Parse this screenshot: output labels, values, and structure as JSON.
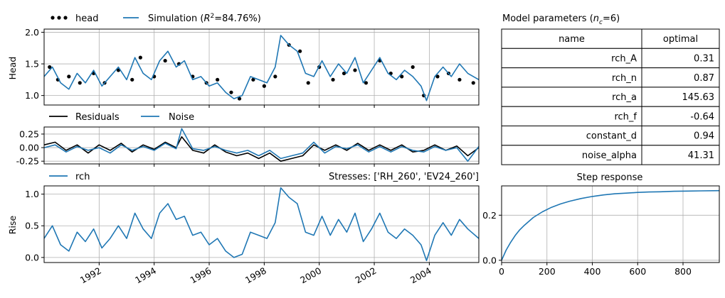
{
  "colors": {
    "series": "#1f77b4",
    "observed": "#000000",
    "residuals": "#000000",
    "grid": "#b0b0b0"
  },
  "top_panel": {
    "legend": {
      "head": "head",
      "simulation_prefix": "Simulation (",
      "r2_symbol": "R",
      "r2_exp": "2",
      "r2_value": "=84.76%)"
    }
  },
  "mid_panel": {
    "legend": {
      "residuals": "Residuals",
      "noise": "Noise"
    }
  },
  "bottom_panel": {
    "legend": {
      "rch": "rch"
    },
    "stresses_label": "Stresses: ['RH_260', 'EV24_260']"
  },
  "params_table": {
    "title_prefix": "Model parameters (",
    "title_sym": "n",
    "title_sub": "c",
    "title_suffix": "=6)",
    "headers": [
      "name",
      "optimal"
    ],
    "rows": [
      {
        "name": "rch_A",
        "value": "0.31"
      },
      {
        "name": "rch_n",
        "value": "0.87"
      },
      {
        "name": "rch_a",
        "value": "145.63"
      },
      {
        "name": "rch_f",
        "value": "-0.64"
      },
      {
        "name": "constant_d",
        "value": "0.94"
      },
      {
        "name": "noise_alpha",
        "value": "41.31"
      }
    ]
  },
  "chart_data": [
    {
      "type": "line",
      "panel": "head",
      "ylabel": "Head",
      "xlim": [
        1990.0,
        2005.8
      ],
      "ylim": [
        0.85,
        2.05
      ],
      "yticks": [
        1.0,
        1.5,
        2.0
      ],
      "ytick_labels": [
        "1.0",
        "1.5",
        "2.0"
      ],
      "grid": true,
      "legend_position": "top-left, above axes",
      "series": [
        {
          "name": "head",
          "style": "scatter",
          "x": [
            1990.2,
            1990.5,
            1990.9,
            1991.3,
            1991.8,
            1992.2,
            1992.7,
            1993.2,
            1993.5,
            1994.0,
            1994.4,
            1994.9,
            1995.4,
            1995.9,
            1996.3,
            1996.8,
            1997.1,
            1997.6,
            1998.0,
            1998.4,
            1998.9,
            1999.3,
            1999.6,
            2000.0,
            2000.5,
            2000.9,
            2001.3,
            2001.7,
            2002.2,
            2002.6,
            2003.0,
            2003.4,
            2003.8,
            2004.3,
            2004.7,
            2005.1,
            2005.6
          ],
          "y": [
            1.45,
            1.25,
            1.3,
            1.2,
            1.35,
            1.2,
            1.4,
            1.25,
            1.6,
            1.3,
            1.55,
            1.5,
            1.3,
            1.2,
            1.25,
            1.05,
            0.95,
            1.25,
            1.15,
            1.3,
            1.8,
            1.7,
            1.2,
            1.45,
            1.25,
            1.35,
            1.4,
            1.2,
            1.55,
            1.35,
            1.3,
            1.45,
            1.0,
            1.3,
            1.35,
            1.25,
            1.2
          ]
        },
        {
          "name": "Simulation",
          "x": [
            1990.0,
            1990.3,
            1990.6,
            1990.9,
            1991.2,
            1991.5,
            1991.8,
            1992.1,
            1992.4,
            1992.7,
            1993.0,
            1993.3,
            1993.6,
            1993.9,
            1994.2,
            1994.5,
            1994.8,
            1995.1,
            1995.4,
            1995.7,
            1996.0,
            1996.3,
            1996.6,
            1996.9,
            1997.2,
            1997.5,
            1997.8,
            1998.1,
            1998.4,
            1998.6,
            1998.9,
            1999.2,
            1999.5,
            1999.8,
            2000.1,
            2000.4,
            2000.7,
            2001.0,
            2001.3,
            2001.6,
            2001.9,
            2002.2,
            2002.5,
            2002.8,
            2003.1,
            2003.4,
            2003.7,
            2003.9,
            2004.2,
            2004.5,
            2004.8,
            2005.1,
            2005.4,
            2005.8
          ],
          "y": [
            1.3,
            1.45,
            1.2,
            1.1,
            1.35,
            1.2,
            1.4,
            1.15,
            1.3,
            1.45,
            1.25,
            1.6,
            1.35,
            1.25,
            1.55,
            1.7,
            1.45,
            1.55,
            1.25,
            1.3,
            1.15,
            1.2,
            1.05,
            0.95,
            1.0,
            1.3,
            1.25,
            1.2,
            1.45,
            1.95,
            1.8,
            1.7,
            1.35,
            1.3,
            1.55,
            1.3,
            1.5,
            1.35,
            1.6,
            1.2,
            1.4,
            1.6,
            1.35,
            1.25,
            1.4,
            1.3,
            1.15,
            0.92,
            1.3,
            1.45,
            1.3,
            1.5,
            1.35,
            1.25
          ]
        }
      ]
    },
    {
      "type": "line",
      "panel": "residuals",
      "xlim": [
        1990.0,
        2005.8
      ],
      "ylim": [
        -0.3,
        0.38
      ],
      "yticks": [
        -0.25,
        0.0,
        0.25
      ],
      "ytick_labels": [
        "-0.25",
        "0.00",
        "0.25"
      ],
      "grid": true,
      "legend_position": "top-left, above axes",
      "series": [
        {
          "name": "Residuals",
          "x": [
            1990.0,
            1990.4,
            1990.8,
            1991.2,
            1991.6,
            1992.0,
            1992.4,
            1992.8,
            1993.2,
            1993.6,
            1994.0,
            1994.4,
            1994.8,
            1995.0,
            1995.4,
            1995.8,
            1996.2,
            1996.6,
            1997.0,
            1997.4,
            1997.8,
            1998.2,
            1998.6,
            1999.0,
            1999.4,
            1999.8,
            2000.2,
            2000.6,
            2001.0,
            2001.4,
            2001.8,
            2002.2,
            2002.6,
            2003.0,
            2003.4,
            2003.8,
            2004.2,
            2004.6,
            2005.0,
            2005.4,
            2005.8
          ],
          "y": [
            0.05,
            0.1,
            -0.05,
            0.05,
            -0.1,
            0.05,
            -0.05,
            0.08,
            -0.08,
            0.05,
            -0.03,
            0.1,
            0.0,
            0.2,
            -0.05,
            -0.1,
            0.05,
            -0.08,
            -0.15,
            -0.1,
            -0.2,
            -0.1,
            -0.25,
            -0.2,
            -0.15,
            0.05,
            -0.05,
            0.05,
            -0.05,
            0.08,
            -0.05,
            0.05,
            -0.05,
            0.05,
            -0.08,
            -0.05,
            0.05,
            -0.05,
            0.03,
            -0.15,
            0.0
          ]
        },
        {
          "name": "Noise",
          "x": [
            1990.0,
            1990.4,
            1990.8,
            1991.2,
            1991.6,
            1992.0,
            1992.4,
            1992.8,
            1993.2,
            1993.6,
            1994.0,
            1994.4,
            1994.8,
            1995.0,
            1995.4,
            1995.8,
            1996.2,
            1996.6,
            1997.0,
            1997.4,
            1997.8,
            1998.2,
            1998.6,
            1999.0,
            1999.4,
            1999.8,
            2000.2,
            2000.6,
            2001.0,
            2001.4,
            2001.8,
            2002.2,
            2002.6,
            2003.0,
            2003.4,
            2003.8,
            2004.2,
            2004.6,
            2005.0,
            2005.4,
            2005.8
          ],
          "y": [
            0.0,
            0.05,
            -0.08,
            0.02,
            -0.05,
            0.0,
            -0.1,
            0.05,
            -0.05,
            0.02,
            -0.05,
            0.08,
            -0.02,
            0.35,
            -0.02,
            -0.05,
            0.02,
            -0.05,
            -0.1,
            -0.05,
            -0.15,
            -0.05,
            -0.2,
            -0.15,
            -0.1,
            0.1,
            -0.1,
            0.02,
            -0.02,
            0.05,
            -0.08,
            0.02,
            -0.08,
            0.02,
            -0.05,
            -0.08,
            0.02,
            -0.05,
            0.0,
            -0.25,
            0.02
          ]
        }
      ]
    },
    {
      "type": "line",
      "panel": "contribution",
      "ylabel": "Rise",
      "xlim": [
        1990.0,
        2005.8
      ],
      "ylim": [
        -0.08,
        1.13
      ],
      "yticks": [
        0.0,
        0.5,
        1.0
      ],
      "ytick_labels": [
        "0.0",
        "0.5",
        "1.0"
      ],
      "xticks": [
        1992,
        1994,
        1996,
        1998,
        2000,
        2002,
        2004
      ],
      "xtick_labels": [
        "1992",
        "1994",
        "1996",
        "1998",
        "2000",
        "2002",
        "2004"
      ],
      "grid": true,
      "legend_position": "top-left, above axes",
      "series": [
        {
          "name": "rch",
          "x": [
            1990.0,
            1990.3,
            1990.6,
            1990.9,
            1991.2,
            1991.5,
            1991.8,
            1992.1,
            1992.4,
            1992.7,
            1993.0,
            1993.3,
            1993.6,
            1993.9,
            1994.2,
            1994.5,
            1994.8,
            1995.1,
            1995.4,
            1995.7,
            1996.0,
            1996.3,
            1996.6,
            1996.9,
            1997.2,
            1997.5,
            1997.8,
            1998.1,
            1998.4,
            1998.6,
            1998.9,
            1999.2,
            1999.5,
            1999.8,
            2000.1,
            2000.4,
            2000.7,
            2001.0,
            2001.3,
            2001.6,
            2001.9,
            2002.2,
            2002.5,
            2002.8,
            2003.1,
            2003.4,
            2003.7,
            2003.9,
            2004.2,
            2004.5,
            2004.8,
            2005.1,
            2005.4,
            2005.8
          ],
          "y": [
            0.3,
            0.5,
            0.2,
            0.1,
            0.4,
            0.25,
            0.45,
            0.15,
            0.3,
            0.5,
            0.3,
            0.7,
            0.45,
            0.3,
            0.7,
            0.85,
            0.6,
            0.65,
            0.35,
            0.4,
            0.2,
            0.3,
            0.1,
            0.0,
            0.05,
            0.4,
            0.35,
            0.3,
            0.55,
            1.1,
            0.95,
            0.85,
            0.4,
            0.35,
            0.65,
            0.35,
            0.6,
            0.4,
            0.7,
            0.25,
            0.45,
            0.7,
            0.4,
            0.3,
            0.45,
            0.35,
            0.2,
            -0.05,
            0.35,
            0.55,
            0.35,
            0.6,
            0.45,
            0.3
          ]
        }
      ]
    },
    {
      "type": "line",
      "panel": "step_response",
      "title": "Step response",
      "xlim": [
        0,
        960
      ],
      "ylim": [
        -0.01,
        0.33
      ],
      "xticks": [
        0,
        200,
        400,
        600,
        800
      ],
      "xtick_labels": [
        "0",
        "200",
        "400",
        "600",
        "800"
      ],
      "yticks": [
        0.0,
        0.2
      ],
      "ytick_labels": [
        "0.0",
        "0.2"
      ],
      "grid": true,
      "series": [
        {
          "name": "",
          "x": [
            0,
            20,
            40,
            60,
            80,
            100,
            140,
            180,
            220,
            260,
            300,
            350,
            400,
            450,
            500,
            550,
            600,
            650,
            700,
            760,
            820,
            880,
            960
          ],
          "y": [
            0.0,
            0.045,
            0.08,
            0.11,
            0.135,
            0.155,
            0.19,
            0.215,
            0.235,
            0.25,
            0.262,
            0.274,
            0.283,
            0.29,
            0.295,
            0.298,
            0.301,
            0.303,
            0.304,
            0.306,
            0.307,
            0.308,
            0.309
          ]
        }
      ]
    }
  ]
}
